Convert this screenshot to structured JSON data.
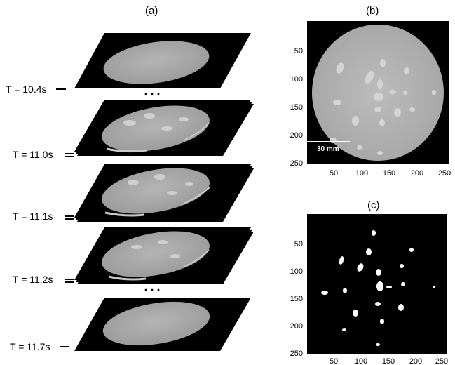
{
  "panel_a": {
    "label": "(a)",
    "time_labels": [
      "T = 10.4s",
      "T = 11.0s",
      "T = 11.1s",
      "T = 11.2s",
      "T = 11.7s"
    ],
    "ellipsis": "..."
  },
  "panel_b": {
    "label": "(b)",
    "x_ticks": [
      "50",
      "100",
      "150",
      "200",
      "250"
    ],
    "y_ticks": [
      "50",
      "100",
      "150",
      "200",
      "250"
    ],
    "scale_bar_label": "30 mm"
  },
  "panel_c": {
    "label": "(c)",
    "x_ticks": [
      "50",
      "100",
      "150",
      "200",
      "250"
    ],
    "y_ticks": [
      "50",
      "100",
      "150",
      "200",
      "250"
    ]
  }
}
